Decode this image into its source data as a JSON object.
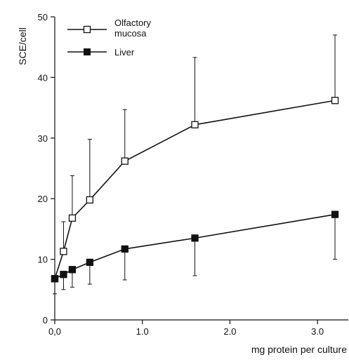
{
  "chart_data": {
    "type": "line",
    "title": "",
    "xlabel": "mg protein per culture",
    "ylabel": "SCE/cell",
    "xlim": [
      0,
      3.4
    ],
    "ylim": [
      0,
      50
    ],
    "x_ticks": [
      0,
      1.0,
      2.0,
      3.0
    ],
    "x_tick_labels": [
      "0,0",
      "1.0",
      "2.0",
      "3.0"
    ],
    "y_ticks": [
      0,
      10,
      20,
      30,
      40,
      50
    ],
    "y_tick_labels": [
      "0",
      "10",
      "20",
      "30",
      "40",
      "50"
    ],
    "grid": false,
    "legend_position": "top-left",
    "error_bars": "upper for Olfactory mucosa, lower for Liver",
    "series": [
      {
        "name": "Olfactory mucosa",
        "marker": "open-square",
        "color": "#111111",
        "x": [
          0,
          0.1,
          0.2,
          0.4,
          0.8,
          1.6,
          3.2
        ],
        "y": [
          6.8,
          11.3,
          16.8,
          19.8,
          26.2,
          32.2,
          36.2
        ],
        "err_upper": [
          0,
          16.2,
          23.8,
          29.8,
          34.7,
          43.3,
          47.0
        ],
        "err_lower": [
          null,
          null,
          null,
          null,
          null,
          null,
          null
        ]
      },
      {
        "name": "Liver",
        "marker": "filled-square",
        "color": "#111111",
        "x": [
          0,
          0.1,
          0.2,
          0.4,
          0.8,
          1.6,
          3.2
        ],
        "y": [
          6.8,
          7.5,
          8.3,
          9.5,
          11.7,
          13.5,
          17.4
        ],
        "err_upper": [
          null,
          null,
          null,
          null,
          null,
          null,
          null
        ],
        "err_lower": [
          4.3,
          5.0,
          5.4,
          5.9,
          6.6,
          7.3,
          10.0
        ]
      }
    ]
  }
}
